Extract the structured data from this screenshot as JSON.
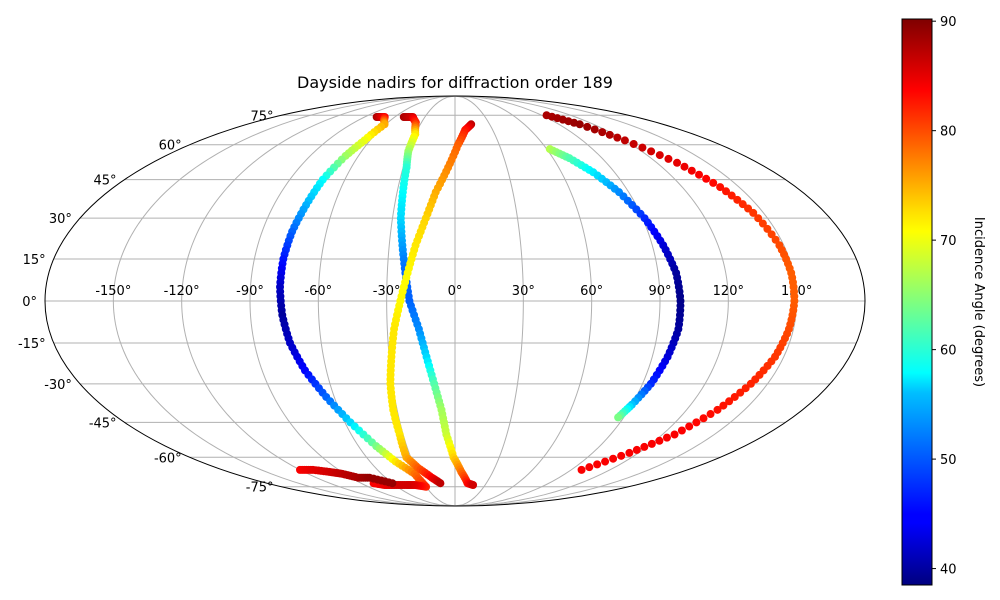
{
  "chart_data": {
    "type": "scatter",
    "title": "Dayside nadirs for diffraction order 189",
    "projection": "mollweide",
    "grid": true,
    "x_ticks": [
      "-150°",
      "-120°",
      "-90°",
      "-60°",
      "-30°",
      "0°",
      "30°",
      "60°",
      "90°",
      "120°",
      "150°"
    ],
    "y_ticks": [
      "75°",
      "60°",
      "45°",
      "30°",
      "15°",
      "0°",
      "-15°",
      "-30°",
      "-45°",
      "-60°",
      "-75°"
    ],
    "colorbar": {
      "label": "Incidence Angle (degrees)",
      "range": [
        38.5,
        90.2
      ],
      "ticks": [
        "40",
        "50",
        "60",
        "70",
        "80",
        "90"
      ],
      "colormap": "jet"
    },
    "tracks": [
      {
        "points": [
          [
            -78,
            74,
            88
          ],
          [
            -70,
            74,
            84
          ],
          [
            -61,
            70,
            75
          ],
          [
            -64,
            62,
            70
          ],
          [
            -68,
            55,
            66
          ],
          [
            -72,
            45,
            58
          ],
          [
            -74,
            35,
            54
          ],
          [
            -76,
            25,
            50
          ],
          [
            -77,
            15,
            46
          ],
          [
            -77,
            5,
            42
          ],
          [
            -76,
            -5,
            40
          ],
          [
            -74,
            -15,
            42
          ],
          [
            -70,
            -25,
            45
          ],
          [
            -64,
            -35,
            50
          ],
          [
            -57,
            -45,
            56
          ],
          [
            -49,
            -55,
            64
          ],
          [
            -42,
            -62,
            72
          ],
          [
            -33,
            -68,
            78
          ],
          [
            -30,
            -75,
            82
          ],
          [
            -40,
            -74,
            85
          ],
          [
            -48,
            -74,
            86
          ],
          [
            -60,
            -74,
            86
          ],
          [
            -70,
            -74,
            85
          ],
          [
            -78,
            -73,
            84
          ]
        ]
      },
      {
        "points": [
          [
            -51,
            74,
            88
          ],
          [
            -42,
            74,
            86
          ],
          [
            -35,
            71,
            82
          ],
          [
            -30,
            65,
            72
          ],
          [
            -30,
            57,
            66
          ],
          [
            -28,
            50,
            60
          ],
          [
            -27,
            40,
            58
          ],
          [
            -26,
            30,
            56
          ],
          [
            -24,
            20,
            53
          ],
          [
            -22,
            10,
            50
          ],
          [
            -20,
            0,
            50
          ],
          [
            -16,
            -10,
            52
          ],
          [
            -13,
            -20,
            56
          ],
          [
            -10,
            -30,
            62
          ],
          [
            -7,
            -40,
            66
          ],
          [
            -5,
            -50,
            68
          ],
          [
            -1,
            -60,
            73
          ],
          [
            5,
            -67,
            78
          ],
          [
            12,
            -73,
            83
          ],
          [
            18,
            -74,
            86
          ]
        ]
      },
      {
        "points": [
          [
            14,
            70,
            87
          ],
          [
            8,
            67,
            83
          ],
          [
            2,
            60,
            79
          ],
          [
            -4,
            50,
            77
          ],
          [
            -10,
            40,
            75
          ],
          [
            -14,
            30,
            73
          ],
          [
            -18,
            20,
            72
          ],
          [
            -21,
            10,
            71
          ],
          [
            -24,
            0,
            71
          ],
          [
            -27,
            -10,
            72
          ],
          [
            -29,
            -20,
            72
          ],
          [
            -31,
            -30,
            72
          ],
          [
            -32,
            -40,
            72
          ],
          [
            -32,
            -50,
            72
          ],
          [
            -33,
            -60,
            75
          ],
          [
            -28,
            -65,
            79
          ],
          [
            -20,
            -70,
            84
          ],
          [
            -14,
            -73,
            87
          ]
        ]
      },
      {
        "points": [
          [
            62,
            58,
            67
          ],
          [
            70,
            54,
            62
          ],
          [
            78,
            48,
            57
          ],
          [
            85,
            40,
            52
          ],
          [
            91,
            30,
            47
          ],
          [
            95,
            20,
            43
          ],
          [
            98,
            10,
            40
          ],
          [
            99,
            0,
            39
          ],
          [
            99,
            -10,
            40
          ],
          [
            97,
            -20,
            43
          ],
          [
            94,
            -30,
            47
          ],
          [
            90,
            -38,
            55
          ],
          [
            87,
            -43,
            64
          ]
        ]
      },
      {
        "points": [
          [
            95,
            75,
            88
          ],
          [
            108,
            70,
            89
          ],
          [
            120,
            62,
            87
          ],
          [
            132,
            52,
            85
          ],
          [
            140,
            42,
            83
          ],
          [
            145,
            32,
            81
          ],
          [
            148,
            20,
            80
          ],
          [
            149,
            10,
            79
          ],
          [
            149,
            0,
            79
          ],
          [
            148,
            -10,
            80
          ],
          [
            146,
            -20,
            81
          ],
          [
            142,
            -30,
            82
          ],
          [
            136,
            -40,
            83
          ],
          [
            127,
            -50,
            84
          ],
          [
            114,
            -58,
            84
          ],
          [
            98,
            -66,
            84
          ]
        ]
      },
      {
        "points": [
          [
            -120,
            -66,
            84
          ],
          [
            -110,
            -66,
            85
          ],
          [
            -100,
            -67,
            86
          ],
          [
            -92,
            -68,
            87
          ],
          [
            -84,
            -70,
            88
          ],
          [
            -74,
            -70,
            89
          ],
          [
            -60,
            -73,
            89
          ]
        ]
      }
    ]
  }
}
